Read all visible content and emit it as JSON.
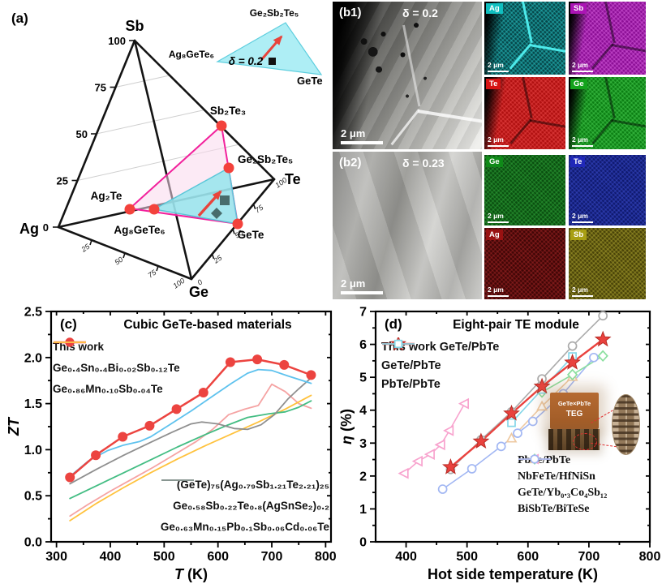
{
  "panel_a": {
    "label": "(a)",
    "corner_top": "Sb",
    "corner_left": "Ag",
    "corner_right": "Te",
    "corner_bottom": "Ge",
    "left_ticks": [
      "0",
      "25",
      "50",
      "75",
      "100"
    ],
    "bottom_ticks": [
      "25",
      "50",
      "75",
      "100"
    ],
    "right_ticks": [
      "0",
      "25",
      "50",
      "75",
      "100"
    ],
    "points": {
      "sb2te3": "Sb₂Te₃",
      "ge2sb2te5": "Ge₂Sb₂Te₅",
      "ag2te": "Ag₂Te",
      "ag8gete6": "Ag₈GeTe₆",
      "gete": "GeTe"
    },
    "inset": {
      "apex": "Ge₂Sb₂Te₅",
      "left": "Ag₈GeTe₆",
      "right": "GeTe",
      "delta": "δ = 0.2"
    }
  },
  "panel_b1": {
    "label": "(b1)",
    "delta": "δ = 0.2",
    "scalebar": "2 μm",
    "maps": [
      {
        "el": "Ag",
        "chip": "#10bfbf",
        "field": "#07474a",
        "speck": "rgba(45,216,216,0.35)",
        "lines": "bright"
      },
      {
        "el": "Sb",
        "chip": "#ab14b4",
        "field": "#8c0f96",
        "speck": "rgba(240,120,246,0.30)",
        "lines": "dark"
      },
      {
        "el": "Te",
        "chip": "#d61414",
        "field": "#b01010",
        "speck": "rgba(255,90,90,0.30)",
        "lines": "dark"
      },
      {
        "el": "Ge",
        "chip": "#13a31c",
        "field": "#0c7f14",
        "speck": "rgba(90,230,100,0.30)",
        "lines": "dark"
      }
    ]
  },
  "panel_b2": {
    "label": "(b2)",
    "delta": "δ = 0.23",
    "scalebar": "2 μm",
    "maps": [
      {
        "el": "Ge",
        "chip": "#0f8a18",
        "field": "#0a4f10",
        "speck": "rgba(60,190,70,0.30)",
        "lines": "none"
      },
      {
        "el": "Te",
        "chip": "#2028b8",
        "field": "#101a70",
        "speck": "rgba(70,90,230,0.30)",
        "lines": "none"
      },
      {
        "el": "Ag",
        "chip": "#991111",
        "field": "#400606",
        "speck": "rgba(200,50,50,0.28)",
        "lines": "none"
      },
      {
        "el": "Sb",
        "chip": "#a89f14",
        "field": "#4a4408",
        "speck": "rgba(200,190,60,0.30)",
        "lines": "none"
      }
    ]
  },
  "inset_d": {
    "line1": "GeTe×PbTe",
    "line2": "TEG"
  },
  "chart_data": [
    {
      "id": "c",
      "type": "line",
      "panel_label": "(c)",
      "title": "Cubic GeTe-based materials",
      "xlabel_em": "T",
      "xlabel_rest": " (K)",
      "ylabel_em": "ZT",
      "ylabel_rest": "",
      "xlim": [
        290,
        810
      ],
      "ylim": [
        0,
        2.5
      ],
      "xticks": [
        300,
        400,
        500,
        600,
        700,
        800
      ],
      "xminor": [
        350,
        450,
        550,
        650,
        750
      ],
      "yticks": [
        {
          "v": 0,
          "t": "0.0"
        },
        {
          "v": 0.5,
          "t": "0.5"
        },
        {
          "v": 1,
          "t": "1.0"
        },
        {
          "v": 1.5,
          "t": "1.5"
        },
        {
          "v": 2,
          "t": "2.0"
        },
        {
          "v": 2.5,
          "t": "2.5"
        }
      ],
      "yminor": [
        0.25,
        0.75,
        1.25,
        1.75,
        2.25
      ],
      "grid": false,
      "legend_positions": [
        "top-left",
        "bottom-right"
      ],
      "series": [
        {
          "name": "Ge₀.₄Sn₀.₄Bi₀.₀₂Sb₀.₁₂Te",
          "color": "#f5a3a3",
          "line_width": 1.8,
          "marker": "none",
          "legend": "top",
          "legend_order": 2,
          "points": [
            [
              325,
              0.28
            ],
            [
              360,
              0.41
            ],
            [
              400,
              0.55
            ],
            [
              440,
              0.68
            ],
            [
              480,
              0.81
            ],
            [
              520,
              0.95
            ],
            [
              560,
              1.09
            ],
            [
              590,
              1.22
            ],
            [
              620,
              1.38
            ],
            [
              650,
              1.44
            ],
            [
              675,
              1.48
            ],
            [
              700,
              1.71
            ],
            [
              725,
              1.63
            ],
            [
              750,
              1.5
            ],
            [
              773,
              1.45
            ]
          ]
        },
        {
          "name": "Ge₀.₈₆Mn₀.₁₀Sb₀.₀₄Te",
          "color": "#ffc23d",
          "line_width": 1.8,
          "marker": "none",
          "legend": "top",
          "legend_order": 3,
          "points": [
            [
              325,
              0.23
            ],
            [
              375,
              0.42
            ],
            [
              425,
              0.59
            ],
            [
              475,
              0.75
            ],
            [
              525,
              0.9
            ],
            [
              575,
              1.04
            ],
            [
              625,
              1.17
            ],
            [
              675,
              1.3
            ],
            [
              725,
              1.44
            ],
            [
              773,
              1.59
            ]
          ]
        },
        {
          "name": "Ge₀.₅₈Sb₀.₂₂Te₀.₈(AgSnSe₂)₀.₂",
          "color": "#43bd83",
          "line_width": 1.8,
          "marker": "none",
          "legend": "bottom",
          "legend_order": 2,
          "points": [
            [
              325,
              0.47
            ],
            [
              375,
              0.61
            ],
            [
              425,
              0.75
            ],
            [
              475,
              0.89
            ],
            [
              525,
              1.03
            ],
            [
              575,
              1.16
            ],
            [
              615,
              1.26
            ],
            [
              655,
              1.35
            ],
            [
              695,
              1.39
            ],
            [
              725,
              1.41
            ],
            [
              750,
              1.46
            ],
            [
              773,
              1.53
            ]
          ]
        },
        {
          "name": "Ge₀.₆₃Mn₀.₁₅Pb₀.₁Sb₀.₀₆Cd₀.₀₆Te",
          "color": "#8f8f8f",
          "line_width": 1.8,
          "marker": "none",
          "legend": "bottom",
          "legend_order": 3,
          "points": [
            [
              325,
              0.63
            ],
            [
              375,
              0.79
            ],
            [
              425,
              0.94
            ],
            [
              475,
              1.08
            ],
            [
              515,
              1.19
            ],
            [
              550,
              1.28
            ],
            [
              570,
              1.3
            ],
            [
              600,
              1.28
            ],
            [
              630,
              1.23
            ],
            [
              655,
              1.22
            ],
            [
              680,
              1.27
            ],
            [
              705,
              1.38
            ],
            [
              730,
              1.55
            ],
            [
              750,
              1.66
            ],
            [
              773,
              1.78
            ]
          ]
        },
        {
          "name": "(GeTe)₇₅(Ag₀.₇₉Sb₁.₂₁Te₂.₂₁)₂₅",
          "color": "#5ec2ee",
          "line_width": 1.8,
          "marker": "none",
          "legend": "bottom",
          "legend_order": 1,
          "points": [
            [
              325,
              0.71
            ],
            [
              360,
              0.88
            ],
            [
              395,
              0.99
            ],
            [
              425,
              1.05
            ],
            [
              455,
              1.09
            ],
            [
              475,
              1.14
            ],
            [
              510,
              1.27
            ],
            [
              550,
              1.42
            ],
            [
              590,
              1.58
            ],
            [
              625,
              1.72
            ],
            [
              655,
              1.83
            ],
            [
              675,
              1.87
            ],
            [
              700,
              1.86
            ],
            [
              730,
              1.8
            ],
            [
              773,
              1.72
            ]
          ]
        },
        {
          "name": "This work",
          "color": "#ec4440",
          "line_width": 2.5,
          "marker": "circle",
          "legend": "top",
          "legend_order": 1,
          "points": [
            [
              325,
              0.7
            ],
            [
              373,
              0.94
            ],
            [
              423,
              1.14
            ],
            [
              473,
              1.26
            ],
            [
              523,
              1.44
            ],
            [
              573,
              1.62
            ],
            [
              623,
              1.95
            ],
            [
              673,
              1.98
            ],
            [
              723,
              1.92
            ],
            [
              773,
              1.81
            ]
          ]
        }
      ]
    },
    {
      "id": "d",
      "type": "line",
      "panel_label": "(d)",
      "title": "Eight-pair TE module",
      "xlabel_em": "",
      "xlabel_rest": "Hot side temperature (K)",
      "ylabel_em": "η",
      "ylabel_rest": " (%)",
      "xlim": [
        350,
        800
      ],
      "ylim": [
        0,
        7
      ],
      "xticks": [
        400,
        500,
        600,
        700,
        800
      ],
      "xminor": [
        450,
        550,
        650,
        750
      ],
      "yticks": [
        {
          "v": 0,
          "t": "0"
        },
        {
          "v": 1,
          "t": "1"
        },
        {
          "v": 2,
          "t": "2"
        },
        {
          "v": 3,
          "t": "3"
        },
        {
          "v": 4,
          "t": "4"
        },
        {
          "v": 5,
          "t": "5"
        },
        {
          "v": 6,
          "t": "6"
        },
        {
          "v": 7,
          "t": "7"
        }
      ],
      "yminor": [
        0.5,
        1.5,
        2.5,
        3.5,
        4.5,
        5.5,
        6.5
      ],
      "grid": false,
      "legend_positions": [
        "top-left",
        "bottom-right"
      ],
      "series": [
        {
          "name": "GeTe/Yb₀.₃Co₄Sb₁₂",
          "color": "#f8a3ce",
          "line_width": 1.6,
          "marker": "otrileft",
          "legend": "bottom",
          "legend_order": 3,
          "points": [
            [
              397,
              2.08
            ],
            [
              420,
              2.45
            ],
            [
              440,
              2.66
            ],
            [
              457,
              2.95
            ],
            [
              471,
              3.38
            ],
            [
              496,
              4.2
            ]
          ]
        },
        {
          "name": "BiSbTe/BiTeSe",
          "color": "#a2b7f3",
          "line_width": 1.6,
          "marker": "ocircle",
          "legend": "bottom",
          "legend_order": 4,
          "points": [
            [
              460,
              1.6
            ],
            [
              508,
              2.22
            ],
            [
              556,
              2.9
            ],
            [
              583,
              3.3
            ],
            [
              608,
              3.66
            ],
            [
              658,
              4.5
            ],
            [
              708,
              5.6
            ]
          ]
        },
        {
          "name": "PbTe/PbTe",
          "color": "#eec9a2",
          "line_width": 1.6,
          "marker": "otriup",
          "legend": "bottom",
          "legend_order": 1,
          "points": [
            [
              573,
              3.15
            ],
            [
              623,
              4.12
            ],
            [
              673,
              5.02
            ]
          ]
        },
        {
          "name": "NbFeTe/HfNiSn",
          "color": "#8adf9e",
          "line_width": 1.6,
          "marker": "odiamond",
          "legend": "bottom",
          "legend_order": 2,
          "points": [
            [
              623,
              4.55
            ],
            [
              673,
              5.08
            ],
            [
              723,
              5.65
            ]
          ]
        },
        {
          "name": "PbTe/PbTe",
          "color": "#84d6e8",
          "line_width": 1.6,
          "marker": "osquare",
          "legend": "top",
          "legend_order": 3,
          "points": [
            [
              573,
              3.62
            ],
            [
              623,
              4.63
            ],
            [
              673,
              5.63
            ]
          ]
        },
        {
          "name": "GeTe/PbTe",
          "color": "#ababab",
          "line_width": 1.6,
          "marker": "ocircle",
          "legend": "top",
          "legend_order": 2,
          "points": [
            [
              473,
              2.2
            ],
            [
              523,
              3.1
            ],
            [
              573,
              3.95
            ],
            [
              623,
              4.95
            ],
            [
              673,
              5.95
            ],
            [
              723,
              6.87
            ]
          ]
        },
        {
          "name": "This work GeTe/PbTe",
          "color": "#e9423e",
          "line_width": 2.4,
          "marker": "star",
          "legend": "top",
          "legend_order": 1,
          "points": [
            [
              473,
              2.27
            ],
            [
              523,
              3.05
            ],
            [
              573,
              3.9
            ],
            [
              623,
              4.72
            ],
            [
              673,
              5.45
            ],
            [
              723,
              6.15
            ]
          ]
        }
      ]
    }
  ]
}
